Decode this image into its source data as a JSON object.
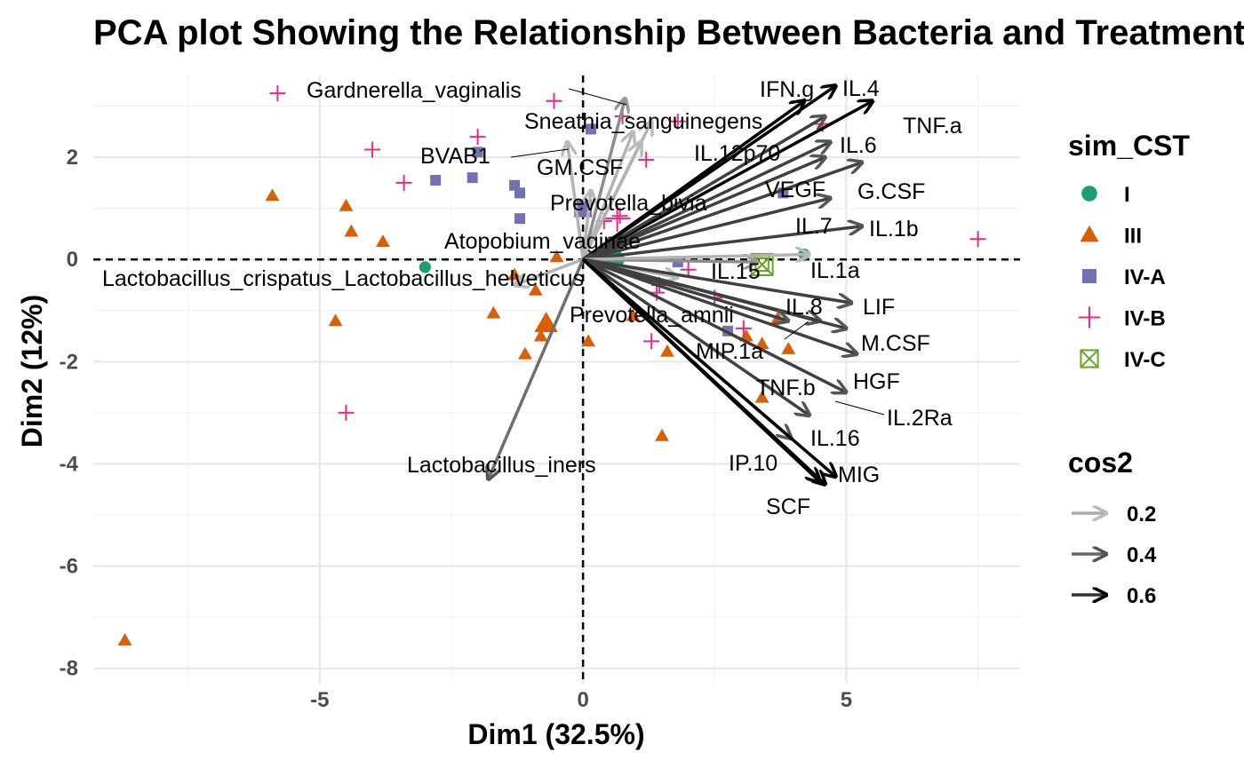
{
  "chart_data": {
    "type": "scatter",
    "title": "PCA plot Showing the Relationship Between Bacteria and Treatment",
    "xlabel": "Dim1 (32.5%)",
    "ylabel": "Dim2 (12%)",
    "xlim": [
      -9.3,
      8.3
    ],
    "ylim": [
      -8.3,
      3.6
    ],
    "xticks": [
      -5,
      0,
      5
    ],
    "xtick_labels": [
      "-5",
      "0",
      "5"
    ],
    "yticks": [
      -8,
      -6,
      -4,
      -2,
      0,
      2
    ],
    "ytick_labels": [
      "-8",
      "-6",
      "-4",
      "-2",
      "0",
      "2"
    ],
    "grid": true,
    "legend": {
      "placement": "right",
      "groups_title": "sim_CST",
      "groups": [
        {
          "name": "I",
          "color": "#1b9e77",
          "shape": "circle"
        },
        {
          "name": "III",
          "color": "#d95f02",
          "shape": "triangle"
        },
        {
          "name": "IV-A",
          "color": "#7570b3",
          "shape": "square"
        },
        {
          "name": "IV-B",
          "color": "#e7298a",
          "shape": "plus"
        },
        {
          "name": "IV-C",
          "color": "#66a61e",
          "shape": "boxcross"
        }
      ],
      "cos2_title": "cos2",
      "cos2_levels": [
        {
          "name": "0.2",
          "color": "#aaaaaa"
        },
        {
          "name": "0.4",
          "color": "#666666"
        },
        {
          "name": "0.6",
          "color": "#333333"
        }
      ]
    },
    "points": [
      {
        "group": "I",
        "x": -3.0,
        "y": -0.15
      },
      {
        "group": "I",
        "x": 4.2,
        "y": 0.1
      },
      {
        "group": "I",
        "x": 0.6,
        "y": 0.0
      },
      {
        "group": "III",
        "x": -8.7,
        "y": -7.45
      },
      {
        "group": "III",
        "x": -5.9,
        "y": 1.25
      },
      {
        "group": "III",
        "x": -4.5,
        "y": 1.05
      },
      {
        "group": "III",
        "x": -4.4,
        "y": 0.55
      },
      {
        "group": "III",
        "x": -3.8,
        "y": 0.35
      },
      {
        "group": "III",
        "x": -4.7,
        "y": -1.2
      },
      {
        "group": "III",
        "x": -1.7,
        "y": -1.05
      },
      {
        "group": "III",
        "x": -1.3,
        "y": -0.3
      },
      {
        "group": "III",
        "x": -0.9,
        "y": -0.6
      },
      {
        "group": "III",
        "x": -1.1,
        "y": -1.85
      },
      {
        "group": "III",
        "x": -0.7,
        "y": -1.25
      },
      {
        "group": "III",
        "x": -0.8,
        "y": -1.5
      },
      {
        "group": "III",
        "x": -0.5,
        "y": 0.05
      },
      {
        "group": "III",
        "x": 0.1,
        "y": -1.6
      },
      {
        "group": "III",
        "x": 0.95,
        "y": -1.1
      },
      {
        "group": "III",
        "x": 1.6,
        "y": -1.8
      },
      {
        "group": "III",
        "x": 1.5,
        "y": -3.45
      },
      {
        "group": "III",
        "x": 3.1,
        "y": -1.5
      },
      {
        "group": "III",
        "x": 3.4,
        "y": -1.65
      },
      {
        "group": "III",
        "x": 3.9,
        "y": -1.75
      },
      {
        "group": "III",
        "x": 3.7,
        "y": -1.15
      },
      {
        "group": "III",
        "x": 3.4,
        "y": -2.7
      },
      {
        "group": "IV-A",
        "x": -2.8,
        "y": 1.55
      },
      {
        "group": "IV-A",
        "x": -2.1,
        "y": 1.6
      },
      {
        "group": "IV-A",
        "x": -2.0,
        "y": 2.1
      },
      {
        "group": "IV-A",
        "x": -1.3,
        "y": 1.45
      },
      {
        "group": "IV-A",
        "x": -1.2,
        "y": 1.3
      },
      {
        "group": "IV-A",
        "x": -1.2,
        "y": 0.8
      },
      {
        "group": "IV-A",
        "x": 0.15,
        "y": 2.55
      },
      {
        "group": "IV-A",
        "x": -0.05,
        "y": 1.0
      },
      {
        "group": "IV-A",
        "x": 1.8,
        "y": -0.05
      },
      {
        "group": "IV-A",
        "x": 2.75,
        "y": -1.4
      },
      {
        "group": "IV-A",
        "x": 3.8,
        "y": 1.3
      },
      {
        "group": "IV-B",
        "x": -5.8,
        "y": 3.25
      },
      {
        "group": "IV-B",
        "x": -4.0,
        "y": 2.15
      },
      {
        "group": "IV-B",
        "x": -3.4,
        "y": 1.5
      },
      {
        "group": "IV-B",
        "x": -2.0,
        "y": 2.4
      },
      {
        "group": "IV-B",
        "x": -0.55,
        "y": 3.1
      },
      {
        "group": "IV-B",
        "x": 0.75,
        "y": 2.8
      },
      {
        "group": "IV-B",
        "x": 1.8,
        "y": 2.7
      },
      {
        "group": "IV-B",
        "x": 1.2,
        "y": 1.95
      },
      {
        "group": "IV-B",
        "x": 4.55,
        "y": 2.65
      },
      {
        "group": "IV-B",
        "x": 0.7,
        "y": 0.85
      },
      {
        "group": "IV-B",
        "x": 0.4,
        "y": 0.75
      },
      {
        "group": "IV-B",
        "x": 7.5,
        "y": 0.4
      },
      {
        "group": "IV-B",
        "x": 1.45,
        "y": -0.5
      },
      {
        "group": "IV-B",
        "x": 1.4,
        "y": -0.65
      },
      {
        "group": "IV-B",
        "x": 2.0,
        "y": -0.2
      },
      {
        "group": "IV-B",
        "x": 2.5,
        "y": -0.75
      },
      {
        "group": "IV-B",
        "x": 3.05,
        "y": -1.35
      },
      {
        "group": "IV-B",
        "x": 1.3,
        "y": -1.6
      },
      {
        "group": "IV-B",
        "x": -4.5,
        "y": -3.0
      },
      {
        "group": "IV-C",
        "x": 3.4,
        "y": -0.1
      }
    ],
    "variables": [
      {
        "name": "Gardnerella_vaginalis",
        "x": 0.8,
        "y": 3.15,
        "cos2": 0.25
      },
      {
        "name": "Sneathia_sanguinegens",
        "x": 1.3,
        "y": 2.7,
        "cos2": 0.2
      },
      {
        "name": "BVAB1",
        "x": -0.3,
        "y": 2.3,
        "cos2": 0.2
      },
      {
        "name": "GM.CSF",
        "x": 1.1,
        "y": 2.3,
        "cos2": 0.2
      },
      {
        "name": "Prevotella_bivia",
        "x": 0.95,
        "y": 2.5,
        "cos2": 0.2
      },
      {
        "name": "Atopobium_vaginae",
        "x": 0.15,
        "y": 1.35,
        "cos2": 0.2
      },
      {
        "name": "Lactobacillus_crispatus_Lactobacillus_helveticus",
        "x": -1.3,
        "y": -0.5,
        "cos2": 0.2
      },
      {
        "name": "Lactobacillus_iners",
        "x": -1.8,
        "y": -4.3,
        "cos2": 0.35
      },
      {
        "name": "Prevotella_amnii",
        "x": 1.8,
        "y": -0.35,
        "cos2": 0.2
      },
      {
        "name": "IFN.g",
        "x": 4.2,
        "y": 3.1,
        "cos2": 0.6
      },
      {
        "name": "IL.4",
        "x": 4.8,
        "y": 3.4,
        "cos2": 0.6
      },
      {
        "name": "TNF.a",
        "x": 5.5,
        "y": 3.1,
        "cos2": 0.65
      },
      {
        "name": "IL.12p70",
        "x": 4.6,
        "y": 2.8,
        "cos2": 0.55
      },
      {
        "name": "IL.6",
        "x": 4.7,
        "y": 2.3,
        "cos2": 0.5
      },
      {
        "name": "VEGF",
        "x": 4.6,
        "y": 2.0,
        "cos2": 0.5
      },
      {
        "name": "G.CSF",
        "x": 5.3,
        "y": 1.9,
        "cos2": 0.5
      },
      {
        "name": "IL.7",
        "x": 4.7,
        "y": 1.2,
        "cos2": 0.45
      },
      {
        "name": "IL.1b",
        "x": 5.3,
        "y": 0.65,
        "cos2": 0.45
      },
      {
        "name": "IL.15",
        "x": 3.3,
        "y": -0.05,
        "cos2": 0.25
      },
      {
        "name": "IL.1a",
        "x": 4.3,
        "y": 0.1,
        "cos2": 0.2
      },
      {
        "name": "IL.8",
        "x": 4.5,
        "y": -1.2,
        "cos2": 0.4
      },
      {
        "name": "LIF",
        "x": 5.1,
        "y": -0.85,
        "cos2": 0.45
      },
      {
        "name": "M.CSF",
        "x": 5.0,
        "y": -1.35,
        "cos2": 0.5
      },
      {
        "name": "MIP.1a",
        "x": 3.9,
        "y": -1.2,
        "cos2": 0.4
      },
      {
        "name": "HGF",
        "x": 5.2,
        "y": -1.85,
        "cos2": 0.5
      },
      {
        "name": "IL.2Ra",
        "x": 5.0,
        "y": -2.6,
        "cos2": 0.55
      },
      {
        "name": "TNF.b",
        "x": 4.3,
        "y": -3.05,
        "cos2": 0.5
      },
      {
        "name": "IL.16",
        "x": 3.95,
        "y": -3.5,
        "cos2": 0.5
      },
      {
        "name": "MIG",
        "x": 4.8,
        "y": -4.25,
        "cos2": 0.65
      },
      {
        "name": "IP.10",
        "x": 4.5,
        "y": -4.35,
        "cos2": 0.65
      },
      {
        "name": "SCF",
        "x": 4.6,
        "y": -4.4,
        "cos2": 0.65
      }
    ],
    "group_means": [
      {
        "group": "IV-A",
        "x": 0.0,
        "y": 1.0
      },
      {
        "group": "IV-B",
        "x": 0.65,
        "y": 0.8
      },
      {
        "group": "III",
        "x": -0.7,
        "y": -1.25
      },
      {
        "group": "I",
        "x": 0.6,
        "y": 0.0
      },
      {
        "group": "IV-C",
        "x": 3.4,
        "y": -0.1
      }
    ]
  }
}
